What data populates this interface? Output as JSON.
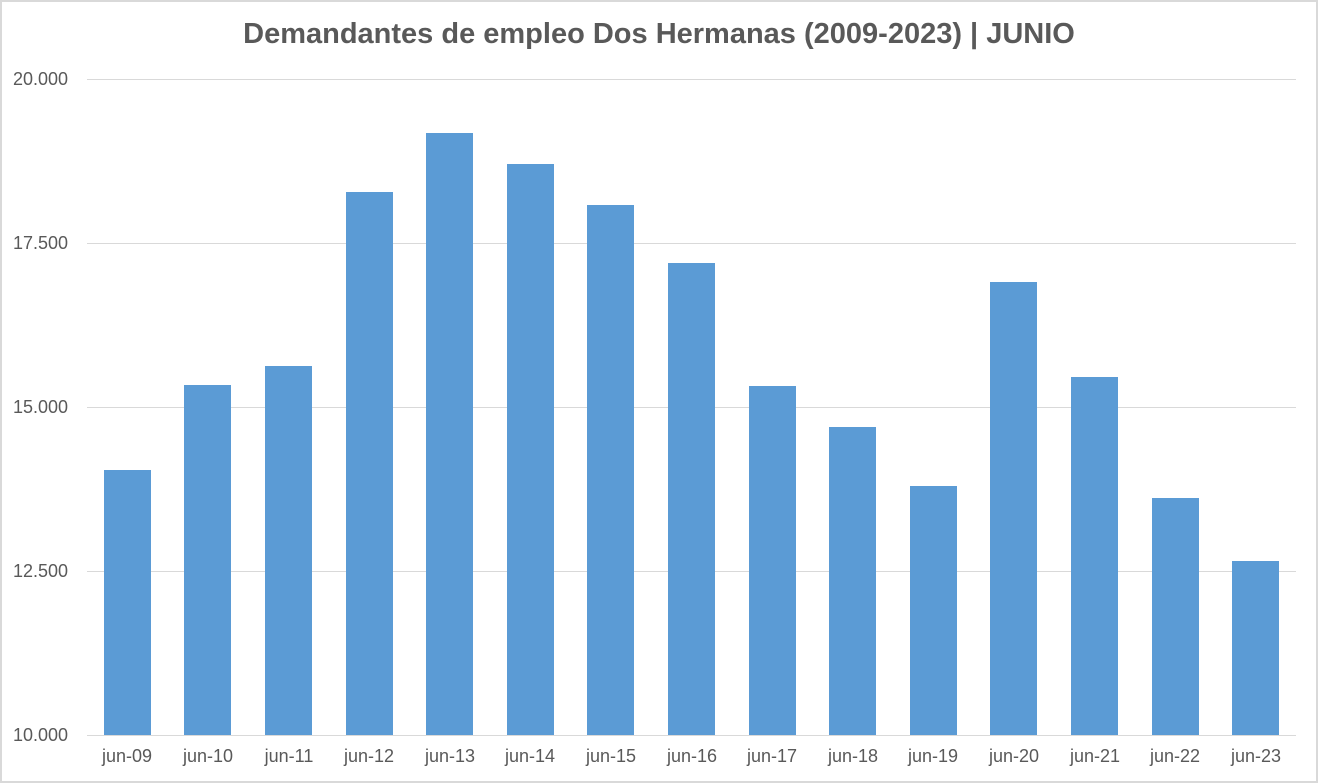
{
  "colors": {
    "bar": "#5b9bd5",
    "gridline": "#d9d9d9",
    "axis_text": "#595959",
    "title_text": "#595959",
    "chart_border": "#d9d9d9",
    "background": "#ffffff"
  },
  "chart_data": {
    "type": "bar",
    "title": "Demandantes de empleo Dos Hermanas (2009-2023) | JUNIO",
    "xlabel": "",
    "ylabel": "",
    "categories": [
      "jun-09",
      "jun-10",
      "jun-11",
      "jun-12",
      "jun-13",
      "jun-14",
      "jun-15",
      "jun-16",
      "jun-17",
      "jun-18",
      "jun-19",
      "jun-20",
      "jun-21",
      "jun-22",
      "jun-23"
    ],
    "values": [
      14040,
      15330,
      15630,
      18270,
      19180,
      18710,
      18080,
      17200,
      15320,
      14700,
      13790,
      16900,
      15460,
      13620,
      12650
    ],
    "ylim": [
      10000,
      20000
    ],
    "y_ticks": [
      10000,
      12500,
      15000,
      17500,
      20000
    ],
    "y_tick_labels": [
      "10.000",
      "12.500",
      "15.000",
      "17.500",
      "20.000"
    ],
    "grid": true,
    "legend": false,
    "legend_position": "none"
  }
}
